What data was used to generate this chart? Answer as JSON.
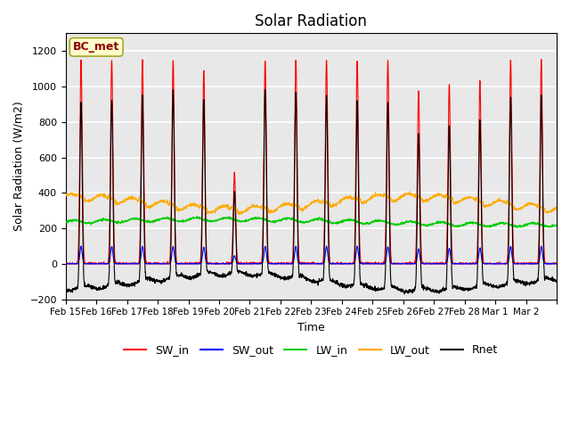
{
  "title": "Solar Radiation",
  "xlabel": "Time",
  "ylabel": "Solar Radiation (W/m2)",
  "ylim": [
    -200,
    1300
  ],
  "yticks": [
    -200,
    0,
    200,
    400,
    600,
    800,
    1000,
    1200
  ],
  "background_color": "#ffffff",
  "plot_bg_color": "#e8e8e8",
  "grid_color": "#ffffff",
  "station_label": "BC_met",
  "line_colors": {
    "SW_in": "#ff0000",
    "SW_out": "#0000ff",
    "LW_in": "#00cc00",
    "LW_out": "#ffaa00",
    "Rnet": "#000000"
  },
  "n_days": 16,
  "tick_labels": [
    "Feb 15",
    "Feb 16",
    "Feb 17",
    "Feb 18",
    "Feb 19",
    "Feb 20",
    "Feb 21",
    "Feb 22",
    "Feb 23",
    "Feb 24",
    "Feb 25",
    "Feb 26",
    "Feb 27",
    "Feb 28",
    "Mar 1",
    "Mar 2",
    ""
  ]
}
